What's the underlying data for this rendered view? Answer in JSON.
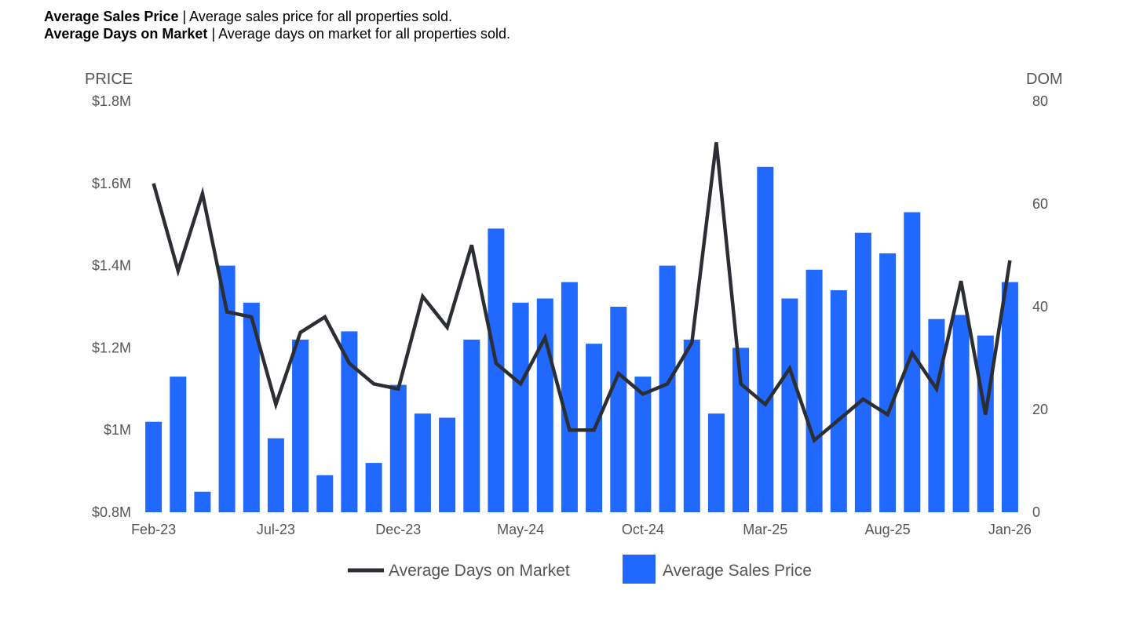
{
  "descriptions": [
    {
      "term": "Average Sales Price",
      "separator": " | ",
      "text": "Average sales price for all properties sold."
    },
    {
      "term": "Average Days on Market",
      "separator": " | ",
      "text": "Average days on market for all properties sold."
    }
  ],
  "chart_data": {
    "type": "bar+line",
    "left_axis": {
      "title": "PRICE",
      "ticks": [
        "$0.8M",
        "$1M",
        "$1.2M",
        "$1.4M",
        "$1.6M",
        "$1.8M"
      ],
      "range": [
        0.8,
        1.8
      ],
      "unit": "$M"
    },
    "right_axis": {
      "title": "DOM",
      "ticks": [
        "0",
        "20",
        "40",
        "60",
        "80"
      ],
      "range": [
        0,
        80
      ]
    },
    "x_tick_labels": [
      "Feb-23",
      "Jul-23",
      "Dec-23",
      "May-24",
      "Oct-24",
      "Mar-25",
      "Aug-25",
      "Jan-26"
    ],
    "categories": [
      "Feb-23",
      "Mar-23",
      "Apr-23",
      "May-23",
      "Jun-23",
      "Jul-23",
      "Aug-23",
      "Sep-23",
      "Oct-23",
      "Nov-23",
      "Dec-23",
      "Jan-24",
      "Feb-24",
      "Mar-24",
      "Apr-24",
      "May-24",
      "Jun-24",
      "Jul-24",
      "Aug-24",
      "Sep-24",
      "Oct-24",
      "Nov-24",
      "Dec-24",
      "Jan-25",
      "Feb-25",
      "Mar-25",
      "Apr-25",
      "May-25",
      "Jun-25",
      "Jul-25",
      "Aug-25",
      "Sep-25",
      "Oct-25",
      "Nov-25",
      "Dec-25",
      "Jan-26"
    ],
    "series": [
      {
        "name": "Average Sales Price",
        "type": "bar",
        "axis": "left",
        "color": "#2168ff",
        "values": [
          1.02,
          1.13,
          0.85,
          1.4,
          1.31,
          0.98,
          1.22,
          0.89,
          1.24,
          0.92,
          1.11,
          1.04,
          1.03,
          1.22,
          1.49,
          1.31,
          1.32,
          1.36,
          1.21,
          1.3,
          1.13,
          1.4,
          1.22,
          1.04,
          1.2,
          1.64,
          1.32,
          1.39,
          1.34,
          1.48,
          1.43,
          1.53,
          1.27,
          1.28,
          1.23,
          1.36
        ]
      },
      {
        "name": "Average Days on Market",
        "type": "line",
        "axis": "right",
        "color": "#2b2e33",
        "values": [
          64,
          47,
          62,
          39,
          38,
          21,
          35,
          38,
          29,
          25,
          24,
          42,
          36,
          52,
          29,
          25,
          34,
          16,
          16,
          27,
          23,
          25,
          33,
          72,
          25,
          21,
          28,
          14,
          18,
          22,
          19,
          31,
          24,
          45,
          19,
          49
        ]
      }
    ],
    "legend": {
      "position": "bottom-center",
      "entries": [
        "Average Days on Market",
        "Average Sales Price"
      ]
    },
    "grid": false
  }
}
